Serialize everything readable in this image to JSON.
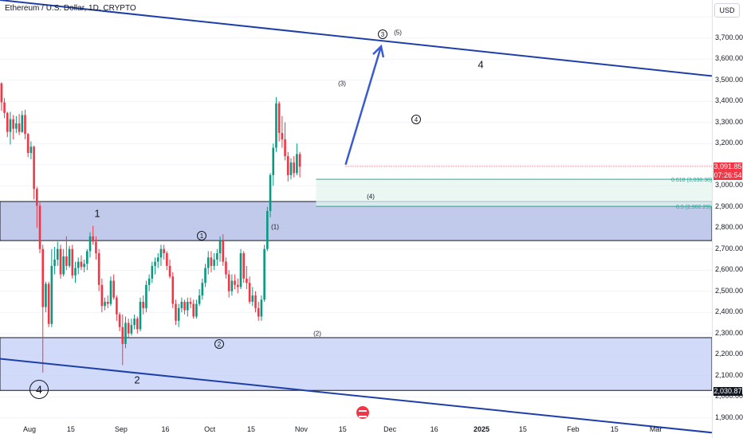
{
  "header": {
    "title": "Ethereum / U.S. Dollar, 1D, CRYPTO"
  },
  "price_axis": {
    "currency_button": "USD",
    "ticks": [
      "3,700.00",
      "3,600.00",
      "3,500.00",
      "3,400.00",
      "3,300.00",
      "3,200.00",
      "3,000.00",
      "2,900.00",
      "2,800.00",
      "2,700.00",
      "2,600.00",
      "2,500.00",
      "2,400.00",
      "2,300.00",
      "2,200.00",
      "2,100.00",
      "2,000.00",
      "1,900.00"
    ],
    "last_price": "3,091.85",
    "countdown": "07:26:54",
    "level_label": "2,030.87",
    "colors": {
      "last": "#f23645",
      "level": "#131722"
    }
  },
  "time_axis": {
    "ticks": [
      "Aug",
      "15",
      "Sep",
      "16",
      "Oct",
      "15",
      "Nov",
      "15",
      "Dec",
      "16",
      "2025",
      "15",
      "Feb",
      "15",
      "Mar"
    ],
    "bold": [
      "2025"
    ]
  },
  "annotations": {
    "fib_618": "0.618 (3,030.38)",
    "fib_5": "0.5 (2,902.29)",
    "w1": "1",
    "w2": "2",
    "w4_top": "4",
    "w4_bottom": "4",
    "c1": "1",
    "c2": "2",
    "c3": "3",
    "c4": "4",
    "p1": "(1)",
    "p2": "(2)",
    "p3": "(3)",
    "p4": "(4)",
    "p5": "(5)"
  },
  "chart_data": {
    "type": "candlestick",
    "symbol": "Ethereum / U.S. Dollar",
    "interval": "1D",
    "ylim": [
      1880,
      3880
    ],
    "x_start": "2024-07-22",
    "x_end": "2025-03-20",
    "colors": {
      "up": "#089981",
      "down": "#f23645",
      "channel": "#1e3fa8",
      "zone": "#b3bde6",
      "zone2": "#c6d1f7",
      "fib": "#22ab94"
    },
    "candles_ohlc": [
      [
        3485,
        3490,
        3355,
        3395
      ],
      [
        3395,
        3415,
        3320,
        3345
      ],
      [
        3345,
        3350,
        3230,
        3255
      ],
      [
        3255,
        3350,
        3195,
        3315
      ],
      [
        3315,
        3335,
        3220,
        3270
      ],
      [
        3270,
        3330,
        3250,
        3295
      ],
      [
        3295,
        3340,
        3240,
        3255
      ],
      [
        3255,
        3355,
        3250,
        3335
      ],
      [
        3335,
        3360,
        3220,
        3245
      ],
      [
        3245,
        3250,
        3135,
        3155
      ],
      [
        3155,
        3210,
        3125,
        3185
      ],
      [
        3185,
        3190,
        2935,
        2985
      ],
      [
        2985,
        2995,
        2800,
        2905
      ],
      [
        2905,
        2920,
        2680,
        2700
      ],
      [
        2700,
        2720,
        2115,
        2425
      ],
      [
        2425,
        2545,
        2400,
        2535
      ],
      [
        2535,
        2545,
        2330,
        2345
      ],
      [
        2345,
        2700,
        2330,
        2620
      ],
      [
        2620,
        2710,
        2580,
        2650
      ],
      [
        2650,
        2735,
        2620,
        2700
      ],
      [
        2700,
        2720,
        2560,
        2580
      ],
      [
        2580,
        2700,
        2570,
        2665
      ],
      [
        2665,
        2760,
        2600,
        2620
      ],
      [
        2620,
        2715,
        2610,
        2700
      ],
      [
        2700,
        2720,
        2560,
        2575
      ],
      [
        2575,
        2640,
        2540,
        2610
      ],
      [
        2610,
        2660,
        2580,
        2640
      ],
      [
        2640,
        2670,
        2600,
        2615
      ],
      [
        2615,
        2650,
        2590,
        2630
      ],
      [
        2630,
        2700,
        2600,
        2690
      ],
      [
        2690,
        2780,
        2660,
        2760
      ],
      [
        2760,
        2810,
        2720,
        2735
      ],
      [
        2735,
        2760,
        2650,
        2680
      ],
      [
        2680,
        2700,
        2500,
        2530
      ],
      [
        2530,
        2560,
        2400,
        2430
      ],
      [
        2430,
        2470,
        2410,
        2450
      ],
      [
        2450,
        2480,
        2420,
        2440
      ],
      [
        2440,
        2570,
        2430,
        2550
      ],
      [
        2550,
        2580,
        2460,
        2470
      ],
      [
        2470,
        2480,
        2360,
        2390
      ],
      [
        2390,
        2400,
        2310,
        2330
      ],
      [
        2330,
        2390,
        2150,
        2250
      ],
      [
        2250,
        2380,
        2230,
        2350
      ],
      [
        2350,
        2370,
        2280,
        2300
      ],
      [
        2300,
        2370,
        2290,
        2340
      ],
      [
        2340,
        2390,
        2320,
        2370
      ],
      [
        2370,
        2380,
        2300,
        2320
      ],
      [
        2320,
        2470,
        2310,
        2450
      ],
      [
        2450,
        2480,
        2390,
        2420
      ],
      [
        2420,
        2550,
        2400,
        2530
      ],
      [
        2530,
        2580,
        2500,
        2560
      ],
      [
        2560,
        2640,
        2540,
        2620
      ],
      [
        2620,
        2660,
        2580,
        2640
      ],
      [
        2640,
        2680,
        2610,
        2660
      ],
      [
        2660,
        2720,
        2620,
        2700
      ],
      [
        2700,
        2720,
        2650,
        2680
      ],
      [
        2680,
        2690,
        2600,
        2620
      ],
      [
        2620,
        2650,
        2560,
        2570
      ],
      [
        2570,
        2590,
        2420,
        2440
      ],
      [
        2440,
        2460,
        2340,
        2360
      ],
      [
        2360,
        2440,
        2330,
        2420
      ],
      [
        2420,
        2470,
        2400,
        2450
      ],
      [
        2450,
        2460,
        2390,
        2410
      ],
      [
        2410,
        2470,
        2380,
        2450
      ],
      [
        2450,
        2470,
        2420,
        2440
      ],
      [
        2440,
        2460,
        2370,
        2380
      ],
      [
        2380,
        2460,
        2370,
        2440
      ],
      [
        2440,
        2510,
        2430,
        2480
      ],
      [
        2480,
        2560,
        2460,
        2540
      ],
      [
        2540,
        2630,
        2520,
        2610
      ],
      [
        2610,
        2690,
        2580,
        2660
      ],
      [
        2660,
        2690,
        2590,
        2620
      ],
      [
        2620,
        2680,
        2600,
        2650
      ],
      [
        2650,
        2700,
        2620,
        2680
      ],
      [
        2680,
        2760,
        2640,
        2740
      ],
      [
        2740,
        2770,
        2620,
        2640
      ],
      [
        2640,
        2660,
        2560,
        2580
      ],
      [
        2580,
        2600,
        2470,
        2500
      ],
      [
        2500,
        2580,
        2480,
        2550
      ],
      [
        2550,
        2580,
        2510,
        2530
      ],
      [
        2530,
        2560,
        2490,
        2520
      ],
      [
        2520,
        2700,
        2510,
        2680
      ],
      [
        2680,
        2690,
        2540,
        2560
      ],
      [
        2560,
        2620,
        2510,
        2540
      ],
      [
        2540,
        2570,
        2440,
        2450
      ],
      [
        2450,
        2520,
        2430,
        2480
      ],
      [
        2480,
        2500,
        2400,
        2420
      ],
      [
        2420,
        2450,
        2360,
        2380
      ],
      [
        2380,
        2480,
        2360,
        2460
      ],
      [
        2460,
        2720,
        2450,
        2700
      ],
      [
        2700,
        2900,
        2690,
        2880
      ],
      [
        2880,
        3060,
        2850,
        3050
      ],
      [
        3050,
        3200,
        3000,
        3180
      ],
      [
        3180,
        3420,
        3160,
        3390
      ],
      [
        3390,
        3400,
        3210,
        3250
      ],
      [
        3250,
        3330,
        3180,
        3220
      ],
      [
        3220,
        3300,
        3120,
        3140
      ],
      [
        3140,
        3160,
        3020,
        3050
      ],
      [
        3050,
        3130,
        3030,
        3110
      ],
      [
        3110,
        3140,
        3040,
        3060
      ],
      [
        3060,
        3200,
        3050,
        3150
      ],
      [
        3150,
        3160,
        3040,
        3090
      ]
    ],
    "channel_upper": [
      [
        "2024-07-22",
        3880
      ],
      [
        "2025-03-20",
        3520
      ]
    ],
    "channel_lower": [
      [
        "2024-07-22",
        2180
      ],
      [
        "2025-03-20",
        1830
      ]
    ],
    "zones": [
      {
        "top": 2925,
        "bottom": 2740
      },
      {
        "top": 2280,
        "bottom": 2030
      }
    ],
    "fib_levels": [
      {
        "ratio": 0.618,
        "price": 3030.38
      },
      {
        "ratio": 0.5,
        "price": 2902.29
      }
    ],
    "projection_arrow": [
      [
        "2024-11-16",
        3100
      ],
      [
        "2024-11-28",
        3660
      ]
    ],
    "horizontal_ray": 3091.85
  }
}
